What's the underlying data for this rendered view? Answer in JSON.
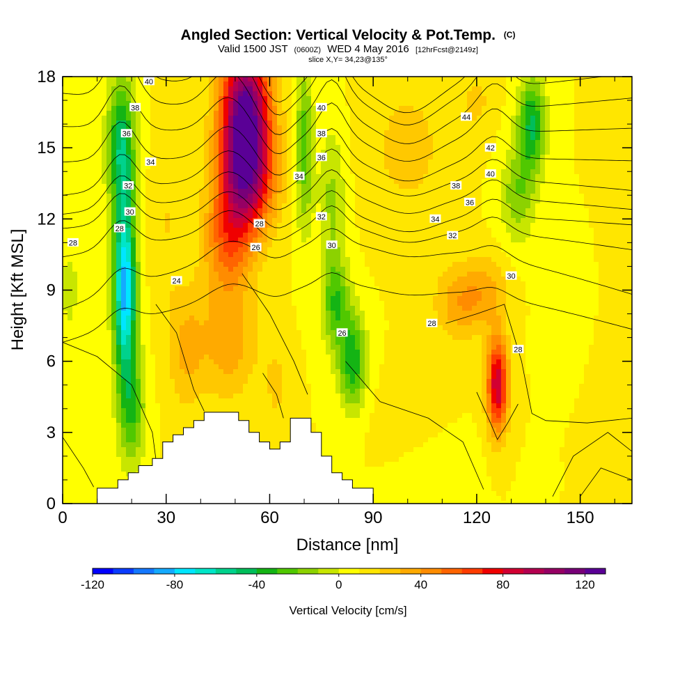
{
  "chart_data": {
    "type": "heatmap",
    "title": "Angled Section: Vertical Velocity & Pot.Temp.",
    "title_suffix": "(C)",
    "subtitle": {
      "part1": "Valid 1500 JST",
      "part2": "(0600Z)",
      "part3": "WED 4 May 2016",
      "part4": "[12hrFcst@2149z]"
    },
    "slice_label": "slice X,Y= 34,23@135°",
    "xlabel": "Distance [nm]",
    "ylabel": "Height [Kft MSL]",
    "xlim": [
      0,
      165
    ],
    "ylim": [
      0,
      18
    ],
    "xticks": [
      "0",
      "30",
      "60",
      "90",
      "120",
      "150"
    ],
    "yticks": [
      "0",
      "3",
      "6",
      "9",
      "12",
      "15",
      "18"
    ],
    "colorbar": {
      "label": "Vertical Velocity [cm/s]",
      "range": [
        -120,
        130
      ],
      "ticks": [
        "-120",
        "-80",
        "-40",
        "0",
        "40",
        "80",
        "120"
      ],
      "colors": [
        "#0000ff",
        "#0a3cff",
        "#1478ff",
        "#14aaff",
        "#00e6ff",
        "#00e6c8",
        "#00d28c",
        "#00be5a",
        "#14b414",
        "#50c800",
        "#8cd200",
        "#c8e600",
        "#ffff00",
        "#ffe600",
        "#ffc800",
        "#ffaa00",
        "#ff8c00",
        "#ff6400",
        "#ff3c00",
        "#f00000",
        "#d20032",
        "#b40050",
        "#960064",
        "#780078",
        "#5a0096"
      ]
    },
    "series": [
      {
        "name": "updraft",
        "sign": 1,
        "blobs": [
          [
            53,
            16.5,
            7,
            2.8,
            115
          ],
          [
            53,
            13.5,
            8,
            2.2,
            75
          ],
          [
            48,
            11,
            7,
            2,
            40
          ],
          [
            48,
            7,
            8,
            2.5,
            28
          ],
          [
            62,
            5,
            4,
            2,
            12
          ],
          [
            36,
            6.5,
            5,
            2.5,
            22
          ],
          [
            115,
            8.5,
            7,
            1.5,
            28
          ],
          [
            126,
            5,
            3,
            2,
            80
          ],
          [
            123,
            9,
            6,
            1.5,
            20
          ],
          [
            100,
            3,
            10,
            2,
            8
          ],
          [
            100,
            15,
            12,
            3,
            14
          ],
          [
            30,
            12,
            4,
            5,
            10
          ],
          [
            120,
            17,
            5,
            1.5,
            12
          ],
          [
            160,
            8,
            5,
            6,
            10
          ]
        ]
      },
      {
        "name": "downdraft",
        "sign": -1,
        "blobs": [
          [
            17,
            15,
            4,
            3,
            58
          ],
          [
            18,
            9,
            3.2,
            3.5,
            95
          ],
          [
            20,
            4,
            4,
            2.5,
            38
          ],
          [
            70,
            15,
            2.5,
            3.5,
            38
          ],
          [
            84,
            6,
            4,
            2,
            48
          ],
          [
            79,
            8.5,
            4,
            2,
            38
          ],
          [
            78,
            13,
            4,
            3,
            22
          ],
          [
            136,
            16,
            4,
            2,
            52
          ],
          [
            132,
            13,
            5,
            2,
            28
          ],
          [
            2,
            9,
            3,
            2,
            15
          ],
          [
            148,
            9,
            7,
            2,
            10
          ],
          [
            106,
            1.5,
            12,
            1.5,
            10
          ]
        ]
      }
    ],
    "isentropes": [
      {
        "label": "24",
        "y0": 6.8,
        "mid": 9.0
      },
      {
        "label": "26",
        "y0": 8.2,
        "mid": 10.7
      },
      {
        "label": "28",
        "y0": 10.4,
        "mid": 11.6
      },
      {
        "label": "30",
        "y0": 11.6,
        "mid": 12.2
      },
      {
        "label": "32",
        "y0": 12.2,
        "mid": 13.0
      },
      {
        "label": "34",
        "y0": 13.0,
        "mid": 13.8
      },
      {
        "label": "36",
        "y0": 14.4,
        "mid": 14.6
      },
      {
        "label": "38",
        "y0": 15.9,
        "mid": 15.6
      },
      {
        "label": "40",
        "y0": 17.3,
        "mid": 16.5
      },
      {
        "label": "42",
        "y0": 18.4,
        "mid": 17.4
      },
      {
        "label": "44",
        "y0": 19.2,
        "mid": 18.0
      }
    ],
    "contour_labels": [
      {
        "text": "40",
        "x": 25,
        "y": 17.8
      },
      {
        "text": "38",
        "x": 21,
        "y": 16.7
      },
      {
        "text": "36",
        "x": 18.5,
        "y": 15.6
      },
      {
        "text": "34",
        "x": 25.5,
        "y": 14.4
      },
      {
        "text": "32",
        "x": 19,
        "y": 13.4
      },
      {
        "text": "30",
        "x": 19.5,
        "y": 12.3
      },
      {
        "text": "28",
        "x": 16.5,
        "y": 11.6
      },
      {
        "text": "28",
        "x": 3,
        "y": 11.0
      },
      {
        "text": "24",
        "x": 33,
        "y": 9.4
      },
      {
        "text": "28",
        "x": 57,
        "y": 11.8
      },
      {
        "text": "26",
        "x": 56,
        "y": 10.8
      },
      {
        "text": "34",
        "x": 68.5,
        "y": 13.8
      },
      {
        "text": "40",
        "x": 75,
        "y": 16.7
      },
      {
        "text": "38",
        "x": 75,
        "y": 15.6
      },
      {
        "text": "36",
        "x": 75,
        "y": 14.6
      },
      {
        "text": "32",
        "x": 75,
        "y": 12.1
      },
      {
        "text": "30",
        "x": 78,
        "y": 10.9
      },
      {
        "text": "26",
        "x": 81,
        "y": 7.2
      },
      {
        "text": "44",
        "x": 117,
        "y": 16.3
      },
      {
        "text": "42",
        "x": 124,
        "y": 15.0
      },
      {
        "text": "40",
        "x": 124,
        "y": 13.9
      },
      {
        "text": "38",
        "x": 114,
        "y": 13.4
      },
      {
        "text": "36",
        "x": 118,
        "y": 12.7
      },
      {
        "text": "34",
        "x": 108,
        "y": 12.0
      },
      {
        "text": "32",
        "x": 113,
        "y": 11.3
      },
      {
        "text": "30",
        "x": 130,
        "y": 9.6
      },
      {
        "text": "28",
        "x": 107,
        "y": 7.6
      },
      {
        "text": "28",
        "x": 132,
        "y": 6.5
      }
    ],
    "terrain": [
      [
        0,
        0
      ],
      [
        10,
        0
      ],
      [
        10,
        0.65
      ],
      [
        16,
        0.65
      ],
      [
        16,
        1.0
      ],
      [
        19,
        1.0
      ],
      [
        19,
        1.3
      ],
      [
        22,
        1.3
      ],
      [
        22,
        1.6
      ],
      [
        26,
        1.6
      ],
      [
        26,
        1.9
      ],
      [
        29,
        1.9
      ],
      [
        29,
        2.6
      ],
      [
        32,
        2.6
      ],
      [
        32,
        2.9
      ],
      [
        35,
        2.9
      ],
      [
        35,
        3.2
      ],
      [
        38,
        3.2
      ],
      [
        38,
        3.5
      ],
      [
        41,
        3.5
      ],
      [
        41,
        3.85
      ],
      [
        51,
        3.85
      ],
      [
        51,
        3.5
      ],
      [
        54,
        3.5
      ],
      [
        54,
        3.0
      ],
      [
        57,
        3.0
      ],
      [
        57,
        2.6
      ],
      [
        60,
        2.6
      ],
      [
        60,
        2.3
      ],
      [
        63,
        2.3
      ],
      [
        63,
        2.6
      ],
      [
        66,
        2.6
      ],
      [
        66,
        3.6
      ],
      [
        72,
        3.6
      ],
      [
        72,
        3.0
      ],
      [
        75,
        3.0
      ],
      [
        75,
        2.0
      ],
      [
        78,
        2.0
      ],
      [
        78,
        1.3
      ],
      [
        81,
        1.3
      ],
      [
        81,
        1.0
      ],
      [
        84,
        1.0
      ],
      [
        84,
        0.65
      ],
      [
        90,
        0.65
      ],
      [
        90,
        0
      ],
      [
        165,
        0
      ]
    ],
    "grid": false,
    "legend": "bottom colorbar"
  }
}
